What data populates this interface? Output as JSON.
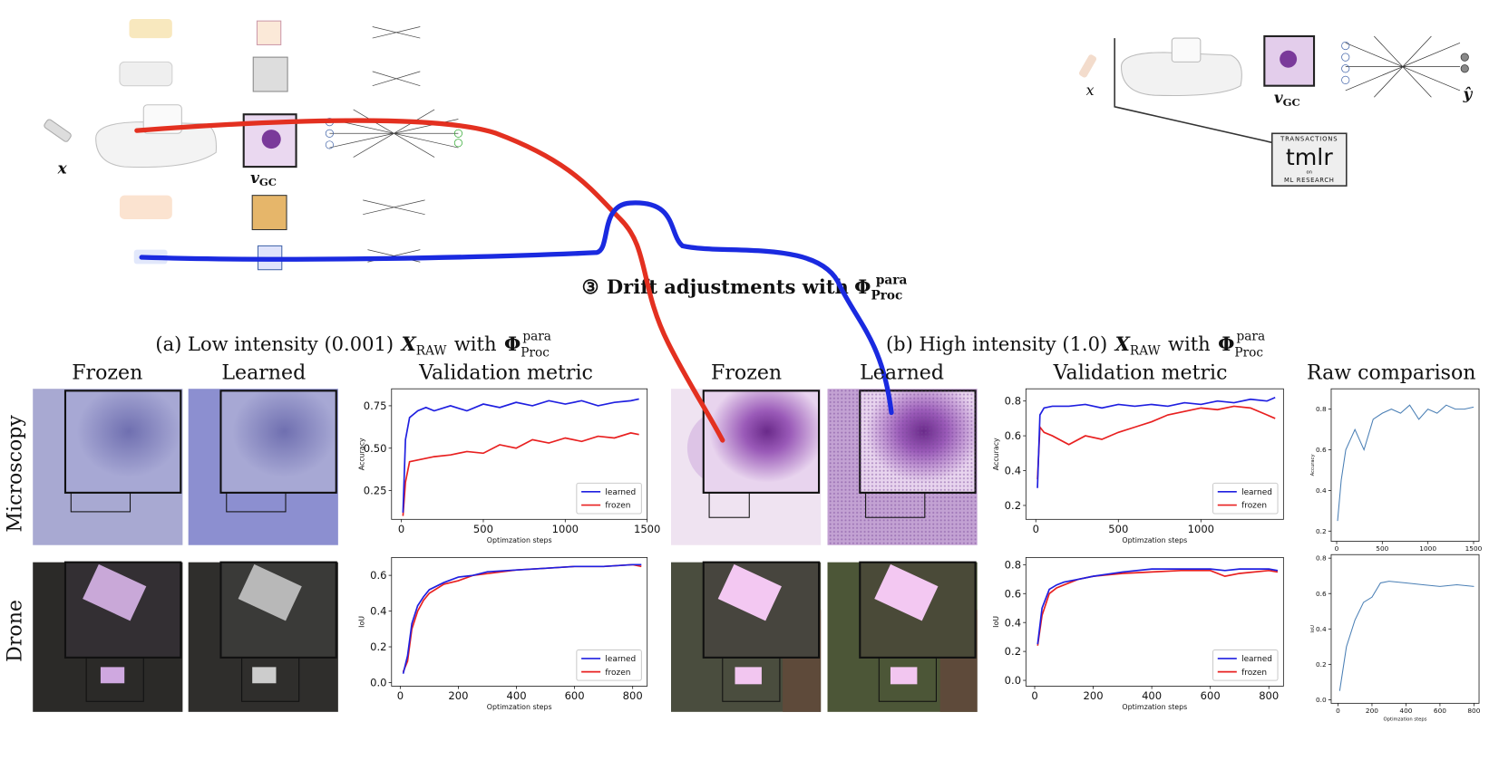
{
  "pipeline_left": {
    "input": "x",
    "features": {
      "base": "v",
      "sub": "GC"
    }
  },
  "pipeline_right": {
    "input": "x",
    "features": {
      "base": "v",
      "sub": "GC"
    },
    "output": "ŷ",
    "logo": {
      "top": "TRANSACTIONS",
      "name": "tmlr",
      "mid": "on",
      "bottom": "ML RESEARCH"
    }
  },
  "heading": {
    "marker": "③",
    "text": "Drift adjustments with",
    "symbol": "Φ",
    "sub": "Proc",
    "sup": "para"
  },
  "panels": [
    {
      "label": "(a) Low intensity (0.001)",
      "x": "X",
      "xsub": "RAW",
      "with": "with",
      "symbol": "Φ",
      "sub": "Proc",
      "sup": "para"
    },
    {
      "label": "(b) High intensity (1.0)",
      "x": "X",
      "xsub": "RAW",
      "with": "with",
      "symbol": "Φ",
      "sub": "Proc",
      "sup": "para"
    }
  ],
  "columns": [
    "Frozen",
    "Learned",
    "Validation metric",
    "Frozen",
    "Learned",
    "Validation metric",
    "Raw comparison"
  ],
  "rows": [
    "Microscopy",
    "Drone"
  ],
  "chart_data": [
    {
      "type": "line",
      "xlabel": "Optimzation steps",
      "ylabel": "Accuracy",
      "x": [
        10,
        25,
        50,
        100,
        150,
        200,
        300,
        400,
        500,
        600,
        700,
        800,
        900,
        1000,
        1100,
        1200,
        1300,
        1400,
        1450
      ],
      "series": [
        {
          "name": "learned",
          "color": "#1f1fe0",
          "values": [
            0.12,
            0.55,
            0.68,
            0.72,
            0.74,
            0.72,
            0.75,
            0.72,
            0.76,
            0.74,
            0.77,
            0.75,
            0.78,
            0.76,
            0.78,
            0.75,
            0.77,
            0.78,
            0.79
          ]
        },
        {
          "name": "frozen",
          "color": "#e82020",
          "values": [
            0.1,
            0.3,
            0.42,
            0.43,
            0.44,
            0.45,
            0.46,
            0.48,
            0.47,
            0.52,
            0.5,
            0.55,
            0.53,
            0.56,
            0.54,
            0.57,
            0.56,
            0.59,
            0.58
          ]
        }
      ],
      "xlim": [
        -60,
        1500
      ],
      "ylim": [
        0.08,
        0.85
      ],
      "xticks": [
        0,
        500,
        1000,
        1500
      ],
      "yticks": [
        0.25,
        {
          "value": 0.5,
          "label": "0.50"
        },
        0.75
      ],
      "legend": "lower right"
    },
    {
      "type": "line",
      "xlabel": "Optimzation steps",
      "ylabel": "IoU",
      "x": [
        10,
        25,
        40,
        60,
        80,
        100,
        150,
        200,
        250,
        300,
        400,
        500,
        600,
        700,
        800,
        830
      ],
      "series": [
        {
          "name": "learned",
          "color": "#1f1fe0",
          "values": [
            0.05,
            0.15,
            0.33,
            0.43,
            0.48,
            0.52,
            0.56,
            0.59,
            0.6,
            0.62,
            0.63,
            0.64,
            0.65,
            0.65,
            0.66,
            0.66
          ]
        },
        {
          "name": "frozen",
          "color": "#e82020",
          "values": [
            0.06,
            0.12,
            0.3,
            0.4,
            0.46,
            0.5,
            0.55,
            0.57,
            0.6,
            0.61,
            0.63,
            0.64,
            0.65,
            0.65,
            0.66,
            0.65
          ]
        }
      ],
      "xlim": [
        -30,
        850
      ],
      "ylim": [
        -0.02,
        0.7
      ],
      "xticks": [
        0,
        200,
        400,
        600,
        800
      ],
      "yticks": [
        {
          "value": 0,
          "label": "0.0"
        },
        0.2,
        0.4,
        0.6
      ],
      "legend": "lower right"
    },
    {
      "type": "line",
      "xlabel": "Optimzation steps",
      "ylabel": "Accuracy",
      "x": [
        10,
        25,
        50,
        100,
        200,
        300,
        400,
        500,
        600,
        700,
        800,
        900,
        1000,
        1100,
        1200,
        1300,
        1400,
        1450
      ],
      "series": [
        {
          "name": "learned",
          "color": "#1f1fe0",
          "values": [
            0.3,
            0.72,
            0.76,
            0.77,
            0.77,
            0.78,
            0.76,
            0.78,
            0.77,
            0.78,
            0.77,
            0.79,
            0.78,
            0.8,
            0.79,
            0.81,
            0.8,
            0.82
          ]
        },
        {
          "name": "frozen",
          "color": "#e82020",
          "values": [
            0.35,
            0.65,
            0.62,
            0.6,
            0.55,
            0.6,
            0.58,
            0.62,
            0.65,
            0.68,
            0.72,
            0.74,
            0.76,
            0.75,
            0.77,
            0.76,
            0.72,
            0.7
          ]
        }
      ],
      "xlim": [
        -60,
        1500
      ],
      "ylim": [
        0.12,
        0.87
      ],
      "xticks": [
        0,
        500,
        1000
      ],
      "yticks": [
        0.2,
        0.4,
        0.6,
        0.8
      ],
      "legend": "lower right"
    },
    {
      "type": "line",
      "xlabel": "Optimzation steps",
      "ylabel": "IoU",
      "x": [
        10,
        25,
        50,
        75,
        100,
        150,
        200,
        300,
        400,
        500,
        600,
        650,
        700,
        800,
        830
      ],
      "series": [
        {
          "name": "learned",
          "color": "#1f1fe0",
          "values": [
            0.25,
            0.5,
            0.63,
            0.66,
            0.68,
            0.7,
            0.72,
            0.75,
            0.77,
            0.77,
            0.77,
            0.76,
            0.77,
            0.77,
            0.76
          ]
        },
        {
          "name": "frozen",
          "color": "#e82020",
          "values": [
            0.24,
            0.45,
            0.6,
            0.64,
            0.66,
            0.7,
            0.72,
            0.74,
            0.75,
            0.76,
            0.76,
            0.72,
            0.74,
            0.76,
            0.75
          ]
        }
      ],
      "xlim": [
        -30,
        850
      ],
      "ylim": [
        -0.04,
        0.85
      ],
      "xticks": [
        0,
        200,
        400,
        600,
        800
      ],
      "yticks": [
        {
          "value": 0,
          "label": "0.0"
        },
        0.2,
        0.4,
        0.6,
        0.8
      ],
      "legend": "lower right"
    },
    {
      "type": "line",
      "xlabel": "Optimzation steps",
      "ylabel": "Accuracy",
      "x": [
        10,
        50,
        100,
        150,
        200,
        300,
        400,
        500,
        600,
        700,
        800,
        900,
        1000,
        1100,
        1200,
        1300,
        1400,
        1500
      ],
      "values": [
        0.25,
        0.45,
        0.6,
        0.65,
        0.7,
        0.6,
        0.75,
        0.78,
        0.8,
        0.78,
        0.82,
        0.75,
        0.8,
        0.78,
        0.82,
        0.8,
        0.8,
        0.81
      ],
      "color": "#4a7fb5",
      "xlim": [
        -60,
        1560
      ],
      "ylim": [
        0.15,
        0.9
      ],
      "xticks": [
        0,
        500,
        1000,
        1500
      ],
      "yticks": [
        0.2,
        0.4,
        0.6,
        0.8
      ]
    },
    {
      "type": "line",
      "xlabel": "Optimzation steps",
      "ylabel": "IoU",
      "x": [
        10,
        50,
        100,
        150,
        200,
        250,
        300,
        400,
        500,
        600,
        700,
        800
      ],
      "values": [
        0.05,
        0.3,
        0.45,
        0.55,
        0.58,
        0.66,
        0.67,
        0.66,
        0.65,
        0.64,
        0.65,
        0.64
      ],
      "color": "#4a7fb5",
      "xlim": [
        -40,
        830
      ],
      "ylim": [
        -0.02,
        0.82
      ],
      "xticks": [
        0,
        200,
        400,
        600,
        800
      ],
      "yticks": [
        {
          "value": 0,
          "label": "0.0"
        },
        0.2,
        0.4,
        0.6,
        0.8
      ]
    }
  ]
}
